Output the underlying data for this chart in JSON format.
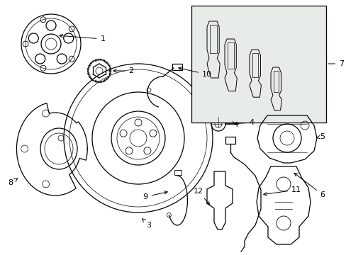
{
  "bg_color": "#ffffff",
  "line_color": "#000000",
  "box_bg": "#e0e8e0",
  "fig_width": 4.89,
  "fig_height": 3.6,
  "dpi": 100
}
